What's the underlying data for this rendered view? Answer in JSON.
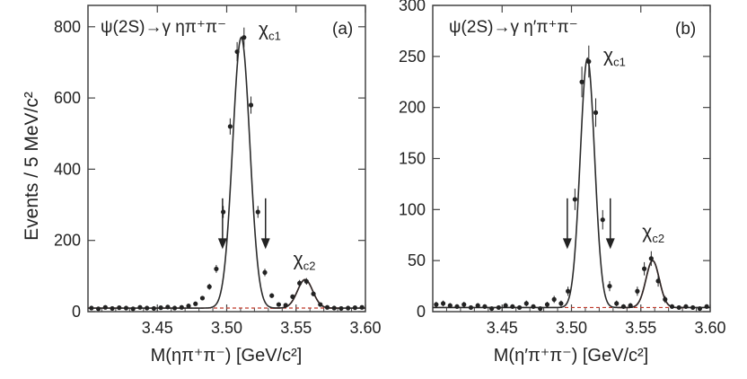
{
  "colors": {
    "fit_total": "#2b2b2b",
    "fit_signal": "#c0392b",
    "background": "#c0392b",
    "points": "#222222",
    "frame": "#444444"
  },
  "chart_data": [
    {
      "type": "scatter",
      "panel_label": "(a)",
      "annotation": "ψ(2S)→γ ηπ⁺π⁻",
      "xlabel": "M(ηπ⁺π⁻) [GeV/c²]",
      "ylabel": "Events / 5 MeV/c²",
      "xlim": [
        3.4,
        3.6
      ],
      "ylim": [
        0,
        860
      ],
      "xticks": [
        3.45,
        3.5,
        3.55,
        3.6
      ],
      "xtick_labels": [
        "3.45",
        "3.50",
        "3.55",
        "3.60"
      ],
      "yticks": [
        0,
        200,
        400,
        600,
        800
      ],
      "ytick_labels": [
        "0",
        "200",
        "400",
        "600",
        "800"
      ],
      "peak_labels": [
        {
          "text": "χ",
          "sub": "c1",
          "x": 3.523,
          "y": 775
        },
        {
          "text": "χ",
          "sub": "c2",
          "x": 3.548,
          "y": 130
        }
      ],
      "arrows": [
        3.497,
        3.528
      ],
      "series": [
        {
          "kind": "data_points",
          "x": [
            3.4025,
            3.4075,
            3.4125,
            3.4175,
            3.4225,
            3.4275,
            3.4325,
            3.4375,
            3.4425,
            3.4475,
            3.4525,
            3.4575,
            3.4625,
            3.4675,
            3.4725,
            3.4775,
            3.4825,
            3.4875,
            3.4925,
            3.4975,
            3.5025,
            3.5075,
            3.5125,
            3.5175,
            3.5225,
            3.5275,
            3.5325,
            3.5375,
            3.5425,
            3.5475,
            3.5525,
            3.5575,
            3.5625,
            3.5675,
            3.5725,
            3.5775,
            3.5825,
            3.5875,
            3.5925,
            3.5975
          ],
          "y": [
            10,
            8,
            12,
            9,
            11,
            10,
            8,
            12,
            10,
            9,
            11,
            13,
            10,
            12,
            16,
            22,
            38,
            70,
            120,
            280,
            520,
            730,
            770,
            580,
            280,
            110,
            45,
            20,
            18,
            42,
            80,
            85,
            50,
            20,
            12,
            10,
            9,
            10,
            11,
            12
          ]
        },
        {
          "kind": "fit_total",
          "peaks": [
            {
              "mean": 3.5105,
              "sigma": 0.0062,
              "amp": 760
            },
            {
              "mean": 3.5565,
              "sigma": 0.0055,
              "amp": 80
            }
          ],
          "baseline": 10
        },
        {
          "kind": "fit_signal",
          "mean": 3.5565,
          "sigma": 0.0055,
          "amp": 80,
          "baseline": 10
        },
        {
          "kind": "background",
          "level": 10
        }
      ]
    },
    {
      "type": "scatter",
      "panel_label": "(b)",
      "annotation": "ψ(2S)→γ η′π⁺π⁻",
      "xlabel": "M(η′π⁺π⁻) [GeV/c²]",
      "ylabel": "",
      "xlim": [
        3.4,
        3.6
      ],
      "ylim": [
        0,
        300
      ],
      "xticks": [
        3.45,
        3.5,
        3.55,
        3.6
      ],
      "xtick_labels": [
        "3.45",
        "3.50",
        "3.55",
        "3.60"
      ],
      "yticks": [
        0,
        50,
        100,
        150,
        200,
        250,
        300
      ],
      "ytick_labels": [
        "0",
        "50",
        "100",
        "150",
        "200",
        "250",
        "300"
      ],
      "peak_labels": [
        {
          "text": "χ",
          "sub": "c1",
          "x": 3.523,
          "y": 245
        },
        {
          "text": "χ",
          "sub": "c2",
          "x": 3.551,
          "y": 72
        }
      ],
      "arrows": [
        3.497,
        3.528
      ],
      "series": [
        {
          "kind": "data_points",
          "x": [
            3.4025,
            3.4075,
            3.4125,
            3.4175,
            3.4225,
            3.4275,
            3.4325,
            3.4375,
            3.4425,
            3.4475,
            3.4525,
            3.4575,
            3.4625,
            3.4675,
            3.4725,
            3.4775,
            3.4825,
            3.4875,
            3.4925,
            3.4975,
            3.5025,
            3.5075,
            3.5125,
            3.5175,
            3.5225,
            3.5275,
            3.5325,
            3.5375,
            3.5425,
            3.5475,
            3.5525,
            3.5575,
            3.5625,
            3.5675,
            3.5725,
            3.5775,
            3.5825,
            3.5875,
            3.5925,
            3.5975
          ],
          "y": [
            7,
            8,
            6,
            5,
            7,
            4,
            6,
            5,
            3,
            4,
            6,
            5,
            4,
            8,
            5,
            3,
            7,
            12,
            8,
            20,
            110,
            225,
            245,
            195,
            90,
            25,
            8,
            5,
            6,
            20,
            42,
            52,
            30,
            12,
            5,
            4,
            5,
            4,
            3,
            5
          ]
        },
        {
          "kind": "fit_total",
          "peaks": [
            {
              "mean": 3.5115,
              "sigma": 0.0052,
              "amp": 244
            },
            {
              "mean": 3.5585,
              "sigma": 0.0048,
              "amp": 46
            }
          ],
          "baseline": 4
        },
        {
          "kind": "fit_signal",
          "mean": 3.5585,
          "sigma": 0.0048,
          "amp": 46,
          "baseline": 4
        },
        {
          "kind": "background",
          "level": 4
        }
      ]
    }
  ]
}
